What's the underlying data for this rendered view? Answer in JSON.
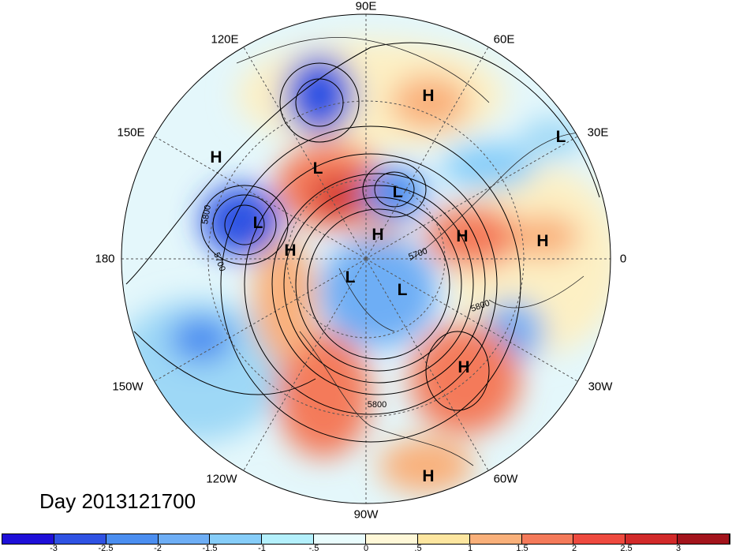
{
  "title": "Day 2013121700",
  "map": {
    "projection": "polar stereographic (north)",
    "longitude_labels": [
      "90E",
      "60E",
      "30E",
      "0",
      "30W",
      "60W",
      "90W",
      "120W",
      "150W",
      "180",
      "150E",
      "120E"
    ],
    "centers": [
      {
        "type": "H"
      },
      {
        "type": "H"
      },
      {
        "type": "H"
      },
      {
        "type": "H"
      },
      {
        "type": "H"
      },
      {
        "type": "H"
      },
      {
        "type": "H"
      },
      {
        "type": "H"
      },
      {
        "type": "L"
      },
      {
        "type": "L"
      },
      {
        "type": "L"
      },
      {
        "type": "L"
      },
      {
        "type": "L"
      },
      {
        "type": "L"
      }
    ],
    "contour_labels": [
      "5800",
      "5700",
      "5700",
      "5800",
      "5800"
    ]
  },
  "colorbar": {
    "ticks": [
      "-3",
      "-2.5",
      "-2",
      "-1.5",
      "-1",
      "-.5",
      "0",
      ".5",
      "1",
      "1.5",
      "2",
      "2.5",
      "3"
    ],
    "colors": [
      "#1e0fd8",
      "#2f52e3",
      "#4b8ef0",
      "#6eaef5",
      "#86cdf9",
      "#b4f0fc",
      "#e9fcfd",
      "#fff8d8",
      "#fde6a0",
      "#f9b07a",
      "#f47a5a",
      "#ee4a3f",
      "#d22a2a",
      "#a3141c"
    ]
  }
}
